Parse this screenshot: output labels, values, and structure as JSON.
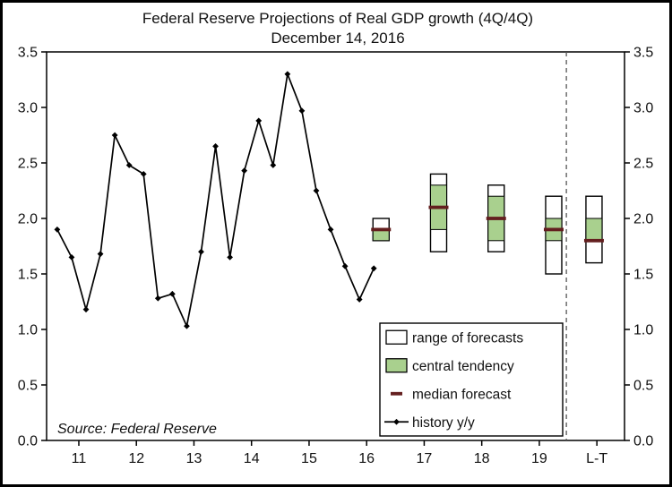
{
  "chart_data": {
    "type": "line",
    "title": "Federal Reserve Projections of Real GDP growth (4Q/4Q)",
    "subtitle": "December 14, 2016",
    "source_note": "Source: Federal Reserve",
    "ylim": [
      0,
      3.5
    ],
    "ytick_step": 0.5,
    "ytick_labels": [
      "0.0",
      "0.5",
      "1.0",
      "1.5",
      "2.0",
      "2.5",
      "3.0",
      "3.5"
    ],
    "x_axis": {
      "tick_labels": [
        "11",
        "12",
        "13",
        "14",
        "15",
        "16",
        "17",
        "18",
        "19",
        "L-T"
      ],
      "tick_values": [
        11,
        12,
        13,
        14,
        15,
        16,
        17,
        18,
        19,
        20
      ],
      "xlim": [
        10.44,
        20.48
      ],
      "divider_x": 19.47
    },
    "history": {
      "label": "history y/y",
      "x_start": 10.625,
      "x_step": 0.25,
      "values": [
        1.9,
        1.65,
        1.18,
        1.68,
        2.75,
        2.48,
        2.4,
        1.28,
        1.32,
        1.03,
        1.7,
        2.65,
        1.65,
        2.43,
        2.88,
        2.48,
        3.3,
        2.97,
        2.25,
        1.9,
        1.57,
        1.27,
        1.55
      ]
    },
    "forecasts": [
      {
        "label": "16",
        "x": 16.25,
        "range": [
          1.8,
          2.0
        ],
        "central_tendency": [
          1.8,
          1.9
        ],
        "median": 1.9
      },
      {
        "label": "17",
        "x": 17.25,
        "range": [
          1.7,
          2.4
        ],
        "central_tendency": [
          1.9,
          2.3
        ],
        "median": 2.1
      },
      {
        "label": "18",
        "x": 18.25,
        "range": [
          1.7,
          2.3
        ],
        "central_tendency": [
          1.8,
          2.2
        ],
        "median": 2.0
      },
      {
        "label": "19",
        "x": 19.25,
        "range": [
          1.5,
          2.2
        ],
        "central_tendency": [
          1.8,
          2.0
        ],
        "median": 1.9
      },
      {
        "label": "L-T",
        "x": 19.95,
        "range": [
          1.6,
          2.2
        ],
        "central_tendency": [
          1.8,
          2.0
        ],
        "median": 1.8
      }
    ],
    "legend": [
      {
        "symbol": "range-box",
        "label": "range of forecasts"
      },
      {
        "symbol": "central-tendency-box",
        "label": "central tendency"
      },
      {
        "symbol": "median-dash",
        "label": "median forecast"
      },
      {
        "symbol": "history-line",
        "label": "history y/y"
      }
    ],
    "colors": {
      "history_line": "#000000",
      "range_box_fill": "#ffffff",
      "range_box_border": "#000000",
      "central_tendency_fill": "#a9d08e",
      "median": "#641f1f",
      "divider": "#555555",
      "background": "#ffffff",
      "border": "#000000"
    }
  }
}
